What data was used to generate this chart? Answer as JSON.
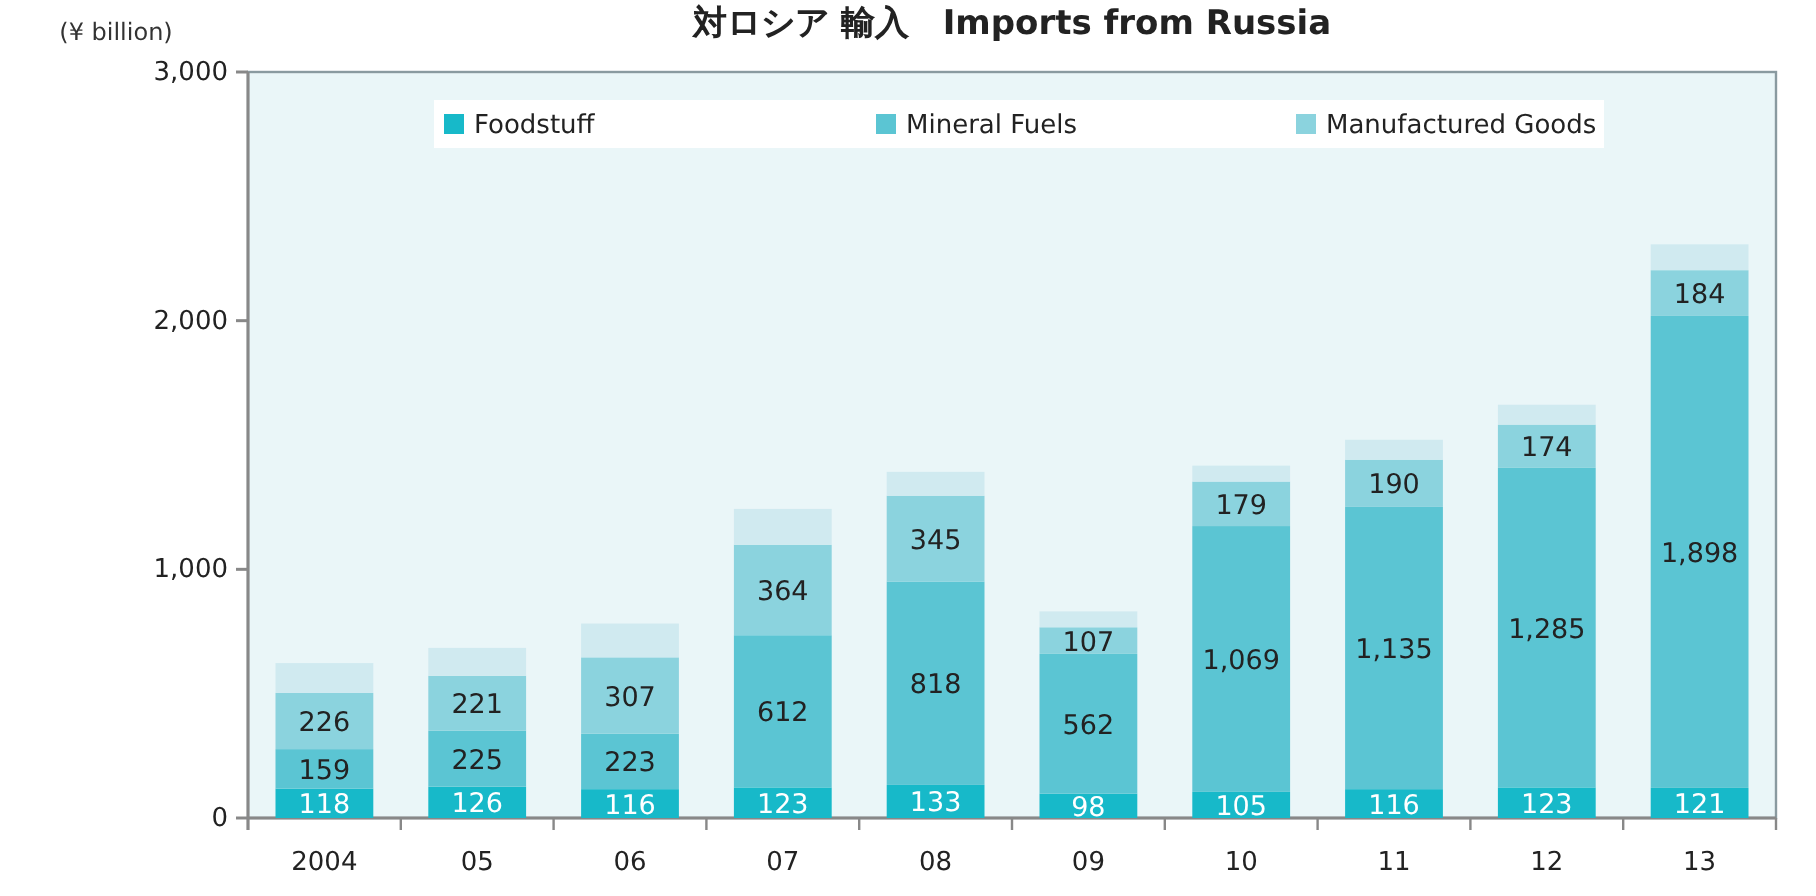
{
  "chart_data": {
    "type": "bar",
    "title": "対ロシア 輸入　Imports from Russia",
    "ylabel": "(¥ billion)",
    "categories": [
      "2004",
      "05",
      "06",
      "07",
      "08",
      "09",
      "10",
      "11",
      "12",
      "13"
    ],
    "stacked": true,
    "legend": "top",
    "grid": false,
    "ylim": [
      0,
      3000
    ],
    "yticks": [
      0,
      {
        "value": 1000,
        "label": "1,000"
      },
      {
        "value": 2000,
        "label": "2,000"
      },
      {
        "value": 3000,
        "label": "3,000"
      }
    ],
    "series": [
      {
        "name": "Foodstuff",
        "color": "#17b9c9",
        "values": [
          118,
          126,
          116,
          123,
          133,
          98,
          105,
          116,
          123,
          121
        ],
        "value_labels": [
          "118",
          "126",
          "116",
          "123",
          "133",
          "98",
          "105",
          "116",
          "123",
          "121"
        ]
      },
      {
        "name": "Mineral Fuels",
        "color": "#5bc5d3",
        "values": [
          159,
          225,
          223,
          612,
          818,
          562,
          1069,
          1135,
          1285,
          1898
        ],
        "value_labels": [
          "159",
          "225",
          "223",
          "612",
          "818",
          "562",
          "1,069",
          "1,135",
          "1,285",
          "1,898"
        ]
      },
      {
        "name": "Manufactured Goods",
        "color": "#8bd3de",
        "values": [
          226,
          221,
          307,
          364,
          345,
          107,
          179,
          190,
          174,
          184
        ],
        "value_labels": [
          "226",
          "221",
          "307",
          "364",
          "345",
          "107",
          "179",
          "190",
          "174",
          "184"
        ]
      },
      {
        "color": "#d0eaf0",
        "values": [
          120,
          112,
          136,
          144,
          96,
          64,
          64,
          80,
          80,
          104
        ]
      }
    ]
  }
}
